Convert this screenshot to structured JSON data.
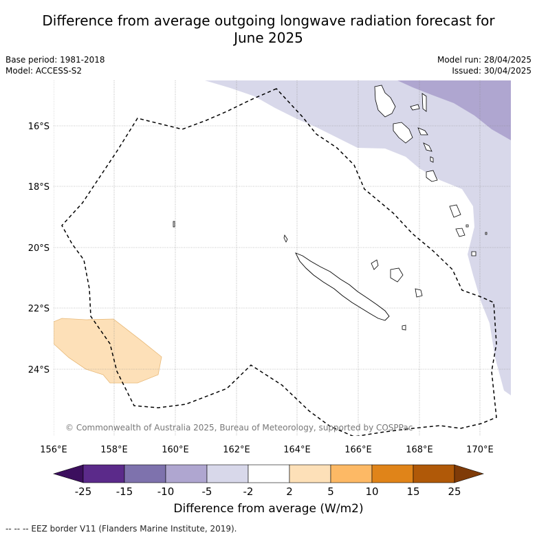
{
  "title": "Difference from average outgoing longwave radiation forecast for June 2025",
  "title_line1": "Difference from average outgoing longwave radiation forecast for",
  "title_line2": "June 2025",
  "meta": {
    "base_period": "Base period: 1981-2018",
    "model": "Model: ACCESS-S2",
    "model_run": "Model run: 28/04/2025",
    "issued": "Issued: 30/04/2025"
  },
  "map": {
    "lon_labels": [
      "156°E",
      "158°E",
      "160°E",
      "162°E",
      "164°E",
      "166°E",
      "168°E",
      "170°E"
    ],
    "lat_labels": [
      "16°S",
      "18°S",
      "20°S",
      "22°S",
      "24°S"
    ],
    "copyright": "© Commonwealth of Australia 2025, Bureau of Meteorology, supported by COSPPac",
    "colors": {
      "neg_2_5": "#d8d8ea",
      "neg_5_10": "#afa6d0",
      "pos_2_5": "#fde0b8",
      "eez": "#000000",
      "grid": "#888888"
    }
  },
  "colorbar": {
    "ticks": [
      "-25",
      "-15",
      "-10",
      "-5",
      "-2",
      "2",
      "5",
      "10",
      "15",
      "25"
    ],
    "colors": [
      "#3c0f5e",
      "#5b2a8a",
      "#7e72ad",
      "#afa6d0",
      "#d8d8ea",
      "#ffffff",
      "#fde0b8",
      "#fdb965",
      "#e08419",
      "#b05908",
      "#7f3b08"
    ],
    "label": "Difference from average (W/m2)"
  },
  "footnote": "--  --  -- EEZ border V11 (Flanders Marine Institute, 2019)."
}
